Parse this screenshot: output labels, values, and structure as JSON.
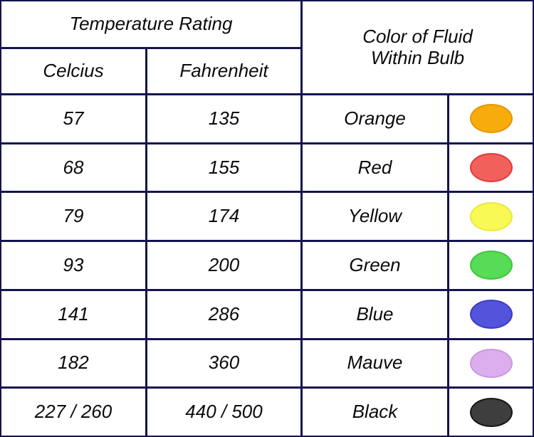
{
  "header": {
    "temperature_rating": "Temperature Rating",
    "celsius_label": "Celcius",
    "fahrenheit_label": "Fahrenheit",
    "color_of_fluid_line1": "Color of Fluid",
    "color_of_fluid_line2": "Within Bulb"
  },
  "colors": {
    "grid_line": "#14144F",
    "cell_background": "#FFFFFF",
    "text": "#0B0B0B"
  },
  "rows": [
    {
      "celsius": "57",
      "fahrenheit": "135",
      "color_name": "Orange",
      "swatch_fill": "#F8AC0C",
      "swatch_edge": "#E69508"
    },
    {
      "celsius": "68",
      "fahrenheit": "155",
      "color_name": "Red",
      "swatch_fill": "#F2605C",
      "swatch_edge": "#E03A38"
    },
    {
      "celsius": "79",
      "fahrenheit": "174",
      "color_name": "Yellow",
      "swatch_fill": "#F9F955",
      "swatch_edge": "#E9E93E"
    },
    {
      "celsius": "93",
      "fahrenheit": "200",
      "color_name": "Green",
      "swatch_fill": "#58DC58",
      "swatch_edge": "#3FC43F"
    },
    {
      "celsius": "141",
      "fahrenheit": "286",
      "color_name": "Blue",
      "swatch_fill": "#5353DC",
      "swatch_edge": "#3B3BC8"
    },
    {
      "celsius": "182",
      "fahrenheit": "360",
      "color_name": "Mauve",
      "swatch_fill": "#DCAEEE",
      "swatch_edge": "#CB97E2"
    },
    {
      "celsius": "227 / 260",
      "fahrenheit": "440 / 500",
      "color_name": "Black",
      "swatch_fill": "#3E3E3E",
      "swatch_edge": "#161616"
    }
  ]
}
